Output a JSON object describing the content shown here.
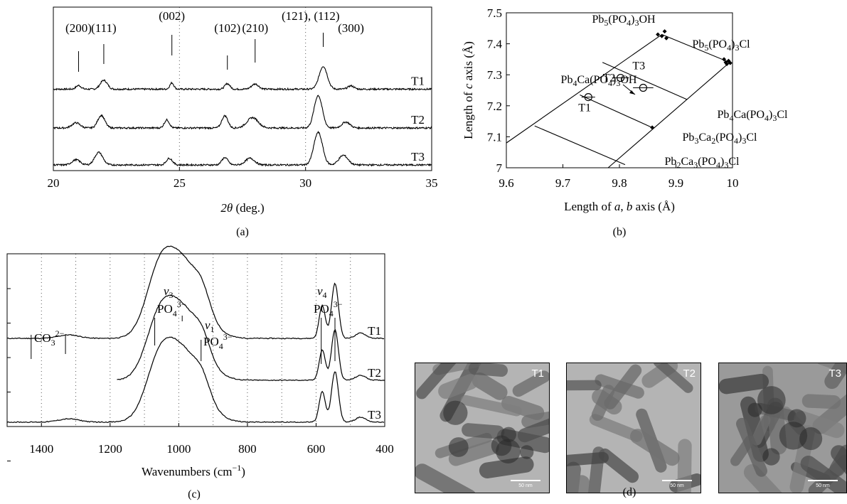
{
  "panels": {
    "a": {
      "label": "(a)"
    },
    "b": {
      "label": "(b)"
    },
    "c": {
      "label": "(c)"
    },
    "d": {
      "label": "(d)"
    }
  },
  "chart_data": [
    {
      "id": "a",
      "type": "line",
      "xlabel_var": "2θ",
      "xlabel_unit": " (deg.)",
      "xlim": [
        20,
        35
      ],
      "xticks": [
        "20",
        "25",
        "30",
        "35"
      ],
      "grid_x_dotted": [
        25,
        30
      ],
      "series": [
        {
          "name": "T1",
          "offset": 2.05,
          "peaks": [
            [
              21.0,
              0.1,
              0.1
            ],
            [
              22.0,
              0.24,
              0.14
            ],
            [
              24.7,
              0.17,
              0.08
            ],
            [
              26.9,
              0.15,
              0.1
            ],
            [
              28.0,
              0.14,
              0.14
            ],
            [
              30.7,
              0.62,
              0.16
            ],
            [
              31.8,
              0.09,
              0.12
            ]
          ]
        },
        {
          "name": "T2",
          "offset": 1.0,
          "peaks": [
            [
              20.9,
              0.14,
              0.16
            ],
            [
              21.9,
              0.34,
              0.14
            ],
            [
              24.5,
              0.22,
              0.1
            ],
            [
              26.8,
              0.33,
              0.12
            ],
            [
              27.9,
              0.28,
              0.22
            ],
            [
              30.5,
              0.88,
              0.16
            ],
            [
              31.6,
              0.16,
              0.16
            ]
          ]
        },
        {
          "name": "T3",
          "offset": 0.0,
          "peaks": [
            [
              20.9,
              0.14,
              0.16
            ],
            [
              21.8,
              0.34,
              0.16
            ],
            [
              24.6,
              0.18,
              0.12
            ],
            [
              26.8,
              0.2,
              0.12
            ],
            [
              27.8,
              0.18,
              0.18
            ],
            [
              30.5,
              0.88,
              0.17
            ],
            [
              31.5,
              0.26,
              0.18
            ]
          ]
        }
      ],
      "annotations": [
        {
          "text": "(200)",
          "x": 21.0
        },
        {
          "text": "(111)",
          "x": 22.0
        },
        {
          "text": "(002)",
          "x": 24.7
        },
        {
          "text": "(102)",
          "x": 26.9
        },
        {
          "text": "(210)",
          "x": 28.0
        },
        {
          "text": "(121), (112)",
          "x": 30.7
        },
        {
          "text": "(300)",
          "x": 31.8
        }
      ]
    },
    {
      "id": "b",
      "type": "scatter",
      "xlabel": "Length of a, b axis (Å)",
      "ylabel": "Length of c axis (Å)",
      "xlim": [
        9.6,
        10.0
      ],
      "ylim": [
        7.0,
        7.5
      ],
      "xticks": [
        "9.6",
        "9.7",
        "9.8",
        "9.9",
        "10"
      ],
      "yticks": [
        "7",
        "7.1",
        "7.2",
        "7.3",
        "7.4",
        "7.5"
      ],
      "samples": [
        {
          "name": "T1",
          "x": 9.745,
          "y": 7.228,
          "xerr": 0.012
        },
        {
          "name": "T2",
          "x": 9.802,
          "y": 7.29,
          "xerr": 0.015
        },
        {
          "name": "T3",
          "x": 9.842,
          "y": 7.258,
          "xerr": 0.018
        }
      ],
      "reference_points": [
        [
          9.868,
          7.43
        ],
        [
          9.875,
          7.425
        ],
        [
          9.88,
          7.44
        ],
        [
          9.883,
          7.418
        ],
        [
          9.985,
          7.35
        ],
        [
          9.988,
          7.34
        ],
        [
          9.99,
          7.335
        ],
        [
          9.993,
          7.345
        ],
        [
          9.996,
          7.338
        ],
        [
          9.858,
          7.13
        ]
      ],
      "lines": [
        [
          [
            9.6,
            7.08
          ],
          [
            9.875,
            7.43
          ]
        ],
        [
          [
            9.875,
            7.43
          ],
          [
            9.995,
            7.34
          ]
        ],
        [
          [
            9.78,
            7.0
          ],
          [
            9.995,
            7.34
          ]
        ],
        [
          [
            9.73,
            7.235
          ],
          [
            9.86,
            7.128
          ]
        ],
        [
          [
            9.77,
            7.34
          ],
          [
            9.92,
            7.22
          ]
        ],
        [
          [
            9.65,
            7.135
          ],
          [
            9.81,
            7.01
          ]
        ]
      ],
      "compound_labels": {
        "pb5oh": "Pb5(PO4)3OH",
        "pb5cl": "Pb5(PO4)3Cl",
        "pb4caoh": "Pb4Ca(PO4)3OH",
        "pb4cacl": "Pb4Ca(PO4)3Cl",
        "pb3ca2cl": "Pb3Ca2(PO4)3Cl",
        "pb2ca3cl": "Pb2Ca3(PO4)3Cl"
      }
    },
    {
      "id": "c",
      "type": "line",
      "xlabel": "Wavenumbers (cm⁻¹)",
      "xlim": [
        1500,
        400
      ],
      "xticks": [
        "1400",
        "1200",
        "1000",
        "800",
        "600",
        "400"
      ],
      "series": [
        {
          "name": "T1",
          "offset": 2.0,
          "x_start": 1500
        },
        {
          "name": "T2",
          "offset": 1.05,
          "x_start": 1180
        },
        {
          "name": "T3",
          "offset": 0.1,
          "x_start": 1500
        }
      ],
      "annotations": [
        {
          "text": "CO₃²⁻",
          "x": [
            1430,
            1330
          ]
        },
        {
          "text": "ν₃ PO₄³⁻",
          "x": [
            1070,
            990
          ]
        },
        {
          "text": "ν₁ PO₄³⁻",
          "x": 935
        },
        {
          "text": "ν₄ PO₄³⁻",
          "x": [
            585,
            545
          ]
        }
      ]
    }
  ],
  "tem_labels": [
    "T1",
    "T2",
    "T3"
  ],
  "scalebar_label": "50 nm"
}
